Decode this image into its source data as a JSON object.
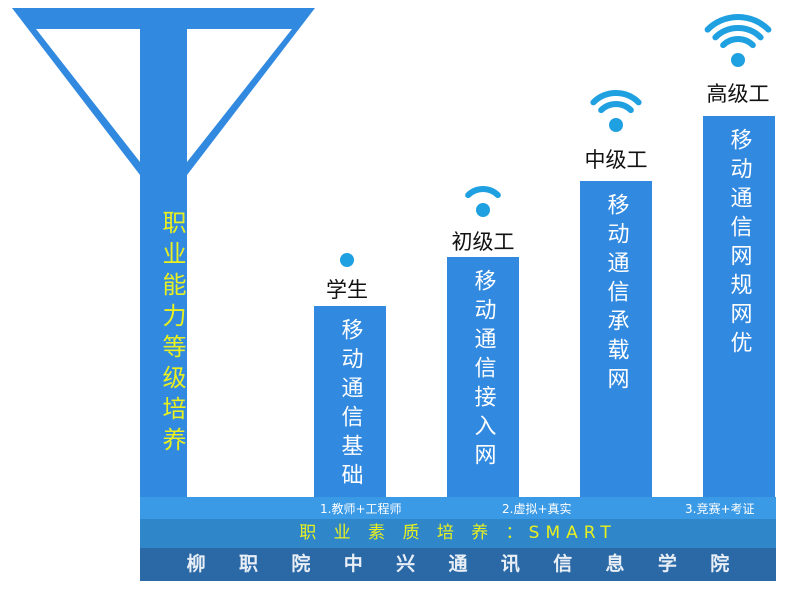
{
  "antenna": {
    "label": "职业能力等级培养",
    "color": "#3189e0",
    "text_color": "#e8f020"
  },
  "levels": [
    {
      "title": "学生",
      "content": "移动通信基础",
      "wifi_arcs": 0,
      "icon": "wifi-icon"
    },
    {
      "title": "初级工",
      "content": "移动通信接入网",
      "wifi_arcs": 1,
      "icon": "wifi-icon"
    },
    {
      "title": "中级工",
      "content": "移动通信承载网",
      "wifi_arcs": 2,
      "icon": "wifi-icon"
    },
    {
      "title": "高级工",
      "content": "移动通信网规网优",
      "wifi_arcs": 3,
      "icon": "wifi-icon"
    }
  ],
  "methods": [
    "1.教师+工程师",
    "2.虚拟+真实",
    "3.竞赛+考证"
  ],
  "quality": "职 业 素 质 培 养 ：SMART",
  "college": [
    "柳",
    "职",
    "院",
    "中",
    "兴",
    "通",
    "讯",
    "信",
    "息",
    "学",
    "院"
  ],
  "colors": {
    "bar": "#3189e0",
    "wifi": "#1fa0e0",
    "strip_light": "#3a9ae6",
    "strip_mid": "#2f86c9",
    "strip_dark": "#2a68a6"
  }
}
